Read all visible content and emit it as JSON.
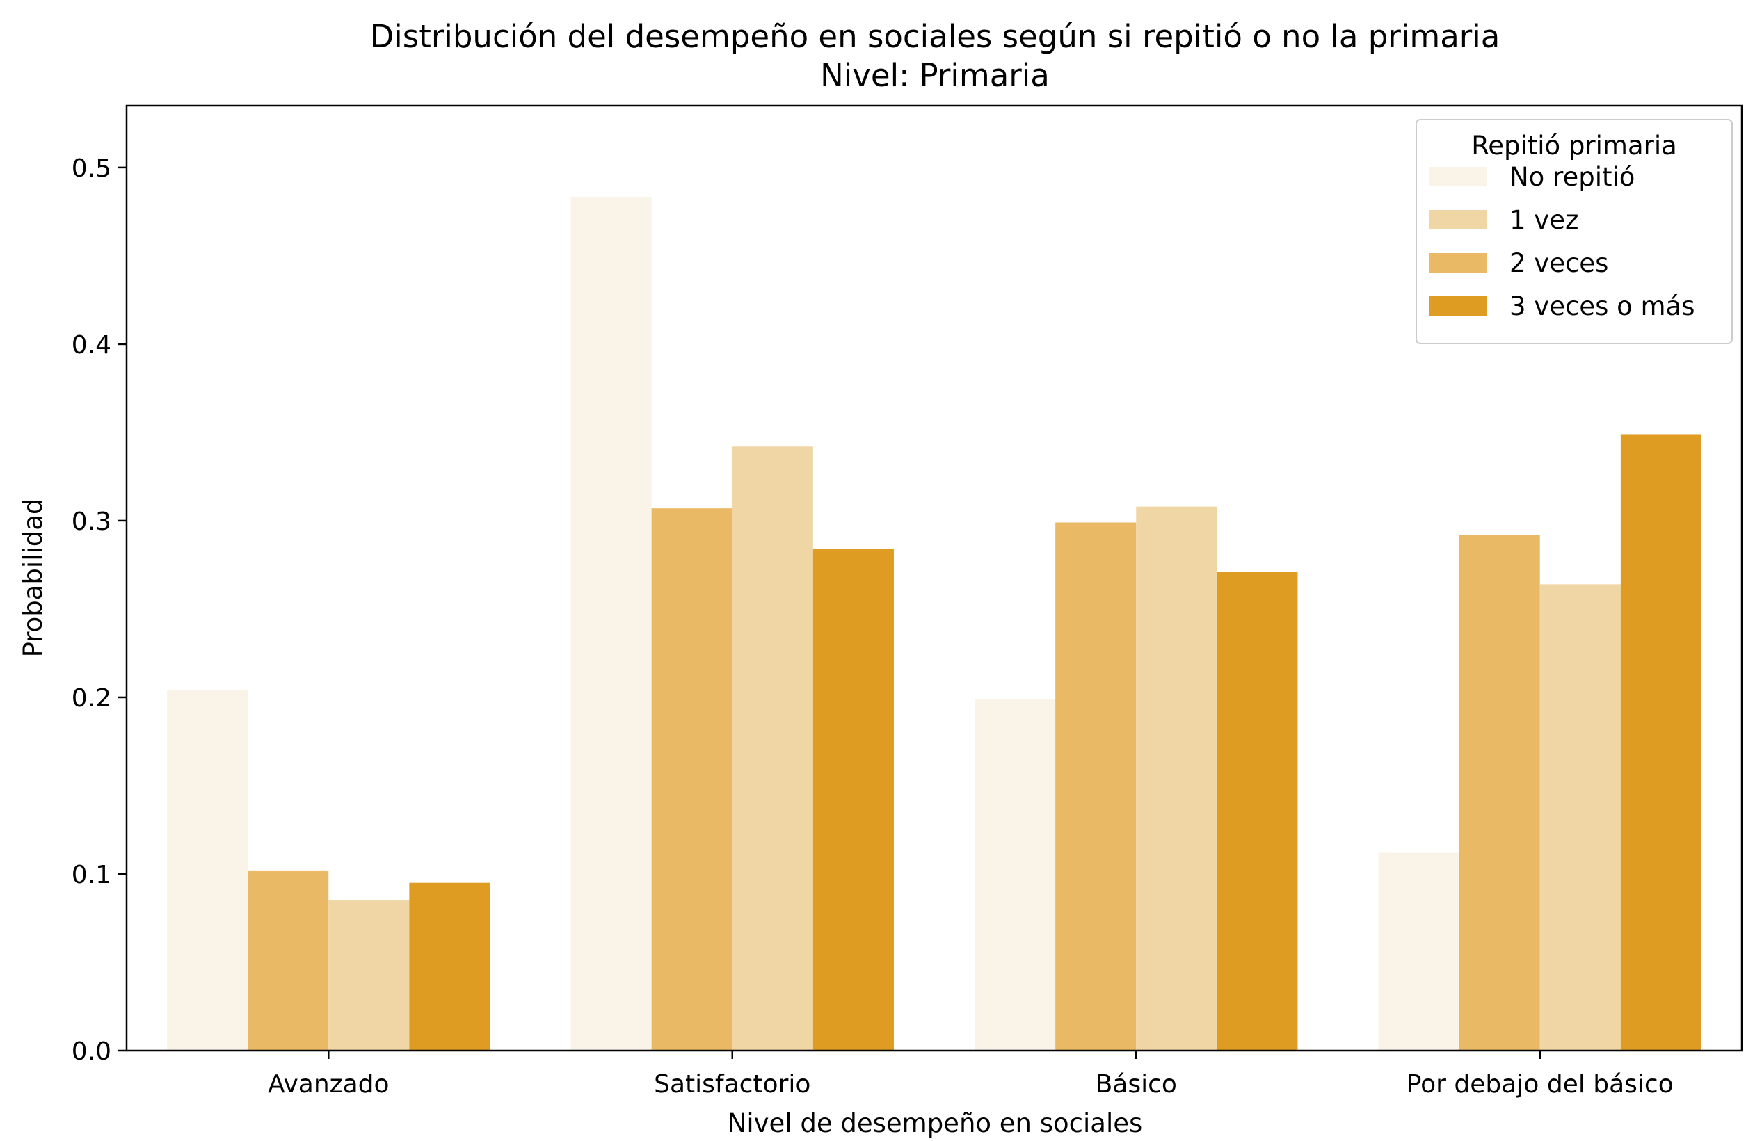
{
  "chart_data": {
    "type": "bar",
    "title": "Distribución del desempeño en sociales según si repitió o no la primaria",
    "subtitle": "Nivel: Primaria",
    "xlabel": "Nivel de desempeño en sociales",
    "ylabel": "Probabilidad",
    "ylim": [
      0,
      0.535
    ],
    "yticks": [
      "0.0",
      "0.1",
      "0.2",
      "0.3",
      "0.4",
      "0.5"
    ],
    "categories": [
      "Avanzado",
      "Satisfactorio",
      "Básico",
      "Por debajo del básico"
    ],
    "legend": {
      "title": "Repitió primaria",
      "position": "top-right"
    },
    "grid": false,
    "series": [
      {
        "name": "No repitió",
        "color": "#faf4e8",
        "values": [
          0.204,
          0.483,
          0.199,
          0.112
        ]
      },
      {
        "name": "2 veces",
        "color": "#eab965",
        "values": [
          0.102,
          0.307,
          0.299,
          0.292
        ]
      },
      {
        "name": "1 vez",
        "color": "#f0d6a5",
        "values": [
          0.085,
          0.342,
          0.308,
          0.264
        ]
      },
      {
        "name": "3 veces o más",
        "color": "#df9c23",
        "values": [
          0.095,
          0.284,
          0.271,
          0.349
        ]
      }
    ],
    "legend_order": [
      "No repitió",
      "1 vez",
      "2 veces",
      "3 veces o más"
    ]
  }
}
